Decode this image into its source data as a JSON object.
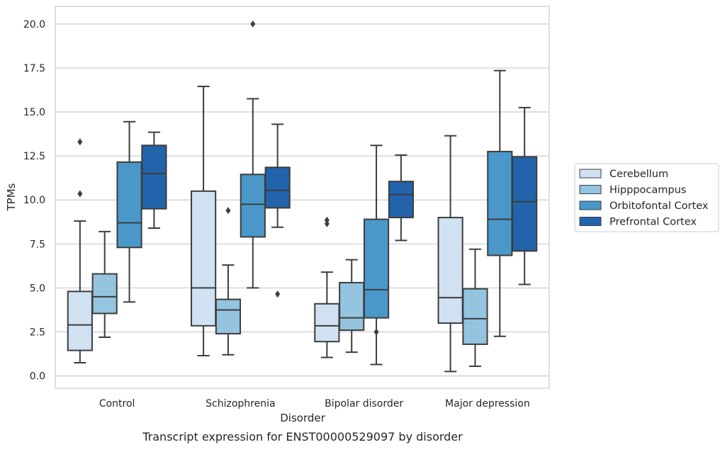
{
  "chart_data": {
    "type": "box",
    "caption": "Transcript expression for ENST00000529097 by disorder",
    "xlabel": "Disorder",
    "ylabel": "TPMs",
    "ylim": [
      -0.7,
      21
    ],
    "yticks": [
      "0.0",
      "2.5",
      "5.0",
      "7.5",
      "10.0",
      "12.5",
      "15.0",
      "17.5",
      "20.0"
    ],
    "grid": "horizontal",
    "legend_position": "right",
    "categories": [
      "Control",
      "Schizophrenia",
      "Bipolar disorder",
      "Major depression"
    ],
    "series": [
      {
        "name": "Cerebellum",
        "color": "#d0e1f2",
        "boxes": [
          {
            "whislo": 0.75,
            "q1": 1.45,
            "med": 2.9,
            "q3": 4.8,
            "whishi": 8.8,
            "fliers": [
              10.35,
              13.3
            ]
          },
          {
            "whislo": 1.15,
            "q1": 2.85,
            "med": 5.0,
            "q3": 10.5,
            "whishi": 16.45,
            "fliers": []
          },
          {
            "whislo": 1.05,
            "q1": 1.95,
            "med": 2.85,
            "q3": 4.1,
            "whishi": 5.9,
            "fliers": [
              8.65,
              8.85
            ]
          },
          {
            "whislo": 0.25,
            "q1": 3.0,
            "med": 4.45,
            "q3": 9.0,
            "whishi": 13.65,
            "fliers": []
          }
        ]
      },
      {
        "name": "Hipppocampus",
        "color": "#94c4df",
        "boxes": [
          {
            "whislo": 2.2,
            "q1": 3.55,
            "med": 4.5,
            "q3": 5.8,
            "whishi": 8.2,
            "fliers": []
          },
          {
            "whislo": 1.2,
            "q1": 2.4,
            "med": 3.75,
            "q3": 4.35,
            "whishi": 6.3,
            "fliers": [
              9.4
            ]
          },
          {
            "whislo": 1.35,
            "q1": 2.6,
            "med": 3.3,
            "q3": 5.3,
            "whishi": 6.6,
            "fliers": []
          },
          {
            "whislo": 0.55,
            "q1": 1.8,
            "med": 3.25,
            "q3": 4.95,
            "whishi": 7.2,
            "fliers": []
          }
        ]
      },
      {
        "name": "Orbitofontal Cortex",
        "color": "#4a98c9",
        "boxes": [
          {
            "whislo": 4.2,
            "q1": 7.3,
            "med": 8.7,
            "q3": 12.15,
            "whishi": 14.45,
            "fliers": []
          },
          {
            "whislo": 5.0,
            "q1": 7.9,
            "med": 9.75,
            "q3": 11.45,
            "whishi": 15.75,
            "fliers": [
              20.0
            ]
          },
          {
            "whislo": 0.65,
            "q1": 3.3,
            "med": 4.9,
            "q3": 8.9,
            "whishi": 13.1,
            "fliers": [
              2.5
            ]
          },
          {
            "whislo": 2.25,
            "q1": 6.85,
            "med": 8.9,
            "q3": 12.75,
            "whishi": 17.35,
            "fliers": []
          }
        ]
      },
      {
        "name": "Prefrontal Cortex",
        "color": "#2164ab",
        "boxes": [
          {
            "whislo": 8.4,
            "q1": 9.5,
            "med": 11.5,
            "q3": 13.1,
            "whishi": 13.85,
            "fliers": []
          },
          {
            "whislo": 8.45,
            "q1": 9.55,
            "med": 10.55,
            "q3": 11.85,
            "whishi": 14.3,
            "fliers": [
              4.65
            ]
          },
          {
            "whislo": 7.7,
            "q1": 9.0,
            "med": 10.3,
            "q3": 11.05,
            "whishi": 12.55,
            "fliers": []
          },
          {
            "whislo": 5.2,
            "q1": 7.1,
            "med": 9.9,
            "q3": 12.45,
            "whishi": 15.25,
            "fliers": []
          }
        ]
      }
    ]
  }
}
